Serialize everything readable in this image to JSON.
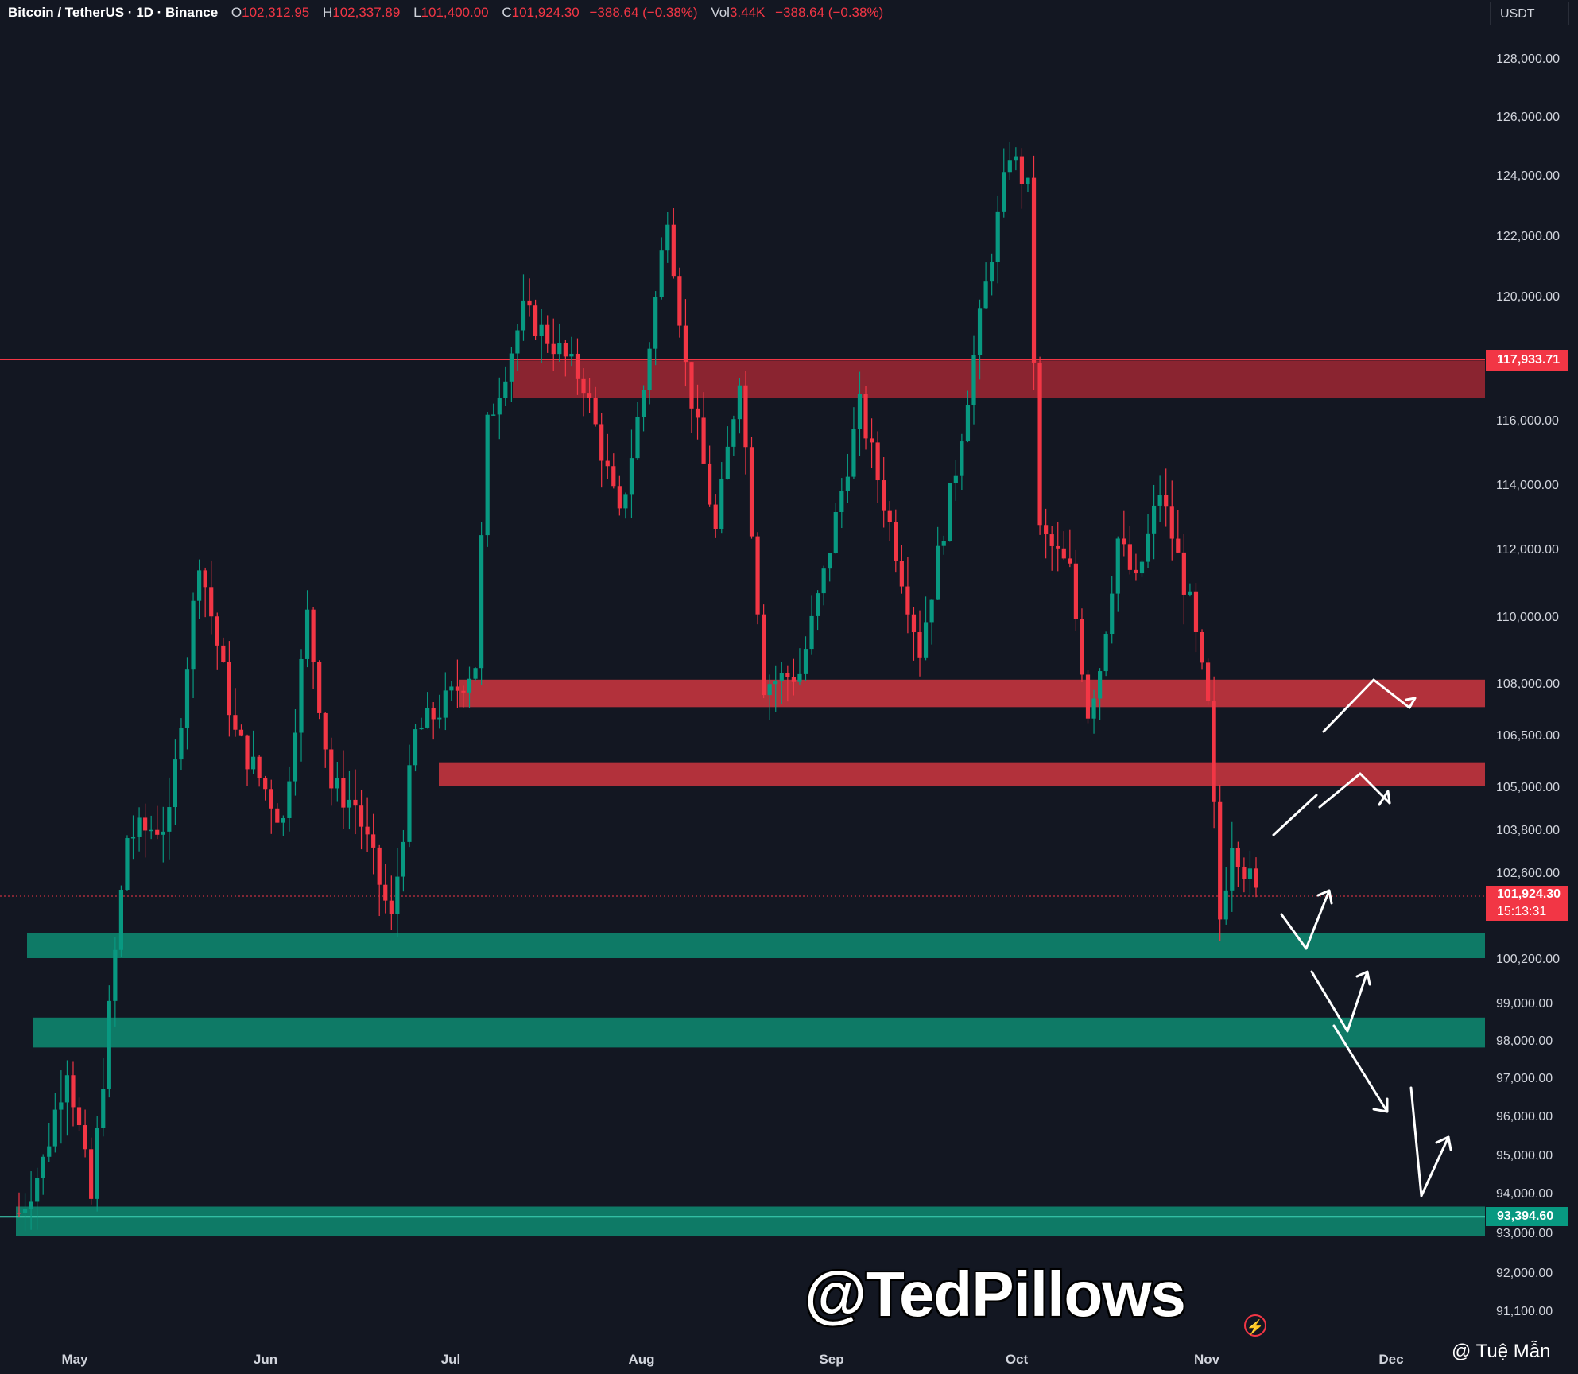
{
  "header": {
    "symbol": "Bitcoin / TetherUS · 1D · Binance",
    "open_label": "O",
    "open": "102,312.95",
    "high_label": "H",
    "high": "102,337.89",
    "low_label": "L",
    "low": "101,400.00",
    "close_label": "C",
    "close": "101,924.30",
    "change": "−388.64 (−0.38%)",
    "vol_label": "Vol",
    "vol": "3.44K",
    "vol_change": "−388.64 (−0.38%)"
  },
  "currency_button": "USDT",
  "price_labels": {
    "resistance_line": "117,933.71",
    "current_price": "101,924.30",
    "countdown": "15:13:31",
    "support_line": "93,394.60"
  },
  "watermark": "@TedPillows",
  "credit": "@ Tuệ Mẫn",
  "colors": {
    "background": "#131722",
    "bull": "#089981",
    "bear": "#f23645",
    "resistance_zone": "#b2313b",
    "support_zone": "#0e7a66",
    "top_zone": "#8a2430"
  },
  "chart_data": {
    "type": "candlestick",
    "title": "Bitcoin / TetherUS · 1D · Binance",
    "x_tick_labels": [
      "May",
      "Jun",
      "Jul",
      "Aug",
      "Sep",
      "Oct",
      "Nov",
      "Dec"
    ],
    "y_tick_labels": [
      "128,000.00",
      "126,000.00",
      "124,000.00",
      "122,000.00",
      "120,000.00",
      "116,000.00",
      "114,000.00",
      "112,000.00",
      "110,000.00",
      "108,000.00",
      "106,500.00",
      "105,000.00",
      "103,800.00",
      "102,600.00",
      "100,200.00",
      "99,000.00",
      "98,000.00",
      "97,000.00",
      "96,000.00",
      "95,000.00",
      "94,000.00",
      "93,000.00",
      "92,000.00",
      "91,100.00"
    ],
    "y_axis_note": "non-linear spacing",
    "horizontal_lines": [
      {
        "price": 117933.71,
        "color": "#f23645"
      },
      {
        "price": 101924.3,
        "color": "#f23645",
        "style": "dotted"
      },
      {
        "price": 93394.6,
        "color": "#089981"
      }
    ],
    "zones": [
      {
        "kind": "resistance",
        "from": 116700,
        "to": 117900,
        "start": "Jul"
      },
      {
        "kind": "resistance",
        "from": 107300,
        "to": 108100,
        "start": "Jul"
      },
      {
        "kind": "resistance",
        "from": 105000,
        "to": 105700,
        "start": "Jul"
      },
      {
        "kind": "support",
        "from": 100200,
        "to": 100900,
        "start": "May"
      },
      {
        "kind": "support",
        "from": 97800,
        "to": 98600,
        "start": "May"
      },
      {
        "kind": "support",
        "from": 92900,
        "to": 93650,
        "start": "May"
      }
    ],
    "price_range_shown": [
      90800,
      128000
    ],
    "last_close": 101924.3
  }
}
